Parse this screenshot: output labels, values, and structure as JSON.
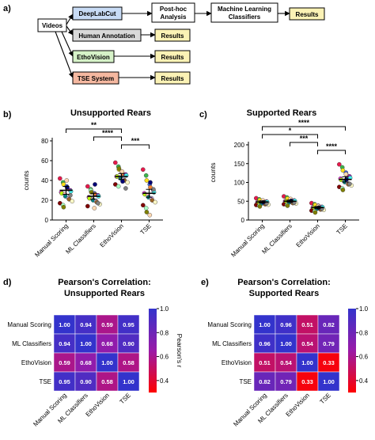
{
  "panels": {
    "a": "a)",
    "b": "b)",
    "c": "c)",
    "d": "d)",
    "e": "e)"
  },
  "flow": {
    "videos": "Videos",
    "deeplabcut": "DeepLabCut",
    "posthoc_line1": "Post-hoc",
    "posthoc_line2": "Analysis",
    "ml_line1": "Machine Learning",
    "ml_line2": "Classifiers",
    "human": "Human Annotation",
    "ethovision": "EthoVision",
    "tse": "TSE System",
    "results": "Results",
    "colors": {
      "deeplabcut": "#c8dbf5",
      "human": "#d9d9d9",
      "ethovision": "#d6f2c8",
      "tse": "#f5b8a0",
      "results": "#fbf2b5"
    }
  },
  "chart_data": [
    {
      "type": "scatter",
      "title": "Unsupported Rears",
      "ylabel": "counts",
      "categories": [
        "Manual Scoring",
        "ML Classifiers",
        "EthoVision",
        "TSE"
      ],
      "ylim": [
        0,
        80
      ],
      "yticks": [
        0,
        20,
        40,
        60,
        80
      ],
      "mean": [
        30,
        24,
        44,
        27
      ],
      "sem": [
        4,
        3,
        3,
        4
      ],
      "points": [
        [
          42,
          38,
          36,
          34,
          32,
          30,
          29,
          28,
          27,
          26,
          24,
          22,
          21,
          19,
          17,
          15,
          13,
          40,
          33,
          25
        ],
        [
          34,
          31,
          29,
          27,
          26,
          25,
          24,
          23,
          22,
          21,
          20,
          19,
          18,
          16,
          14,
          30,
          28,
          12,
          36,
          17
        ],
        [
          58,
          54,
          51,
          48,
          47,
          46,
          45,
          44,
          44,
          43,
          42,
          41,
          40,
          38,
          36,
          34,
          52,
          49,
          39,
          32
        ],
        [
          51,
          45,
          40,
          36,
          33,
          30,
          28,
          27,
          26,
          25,
          23,
          22,
          20,
          18,
          15,
          12,
          8,
          5,
          38,
          31
        ]
      ],
      "significance": [
        {
          "from": 0,
          "to": 2,
          "label": "**"
        },
        {
          "from": 1,
          "to": 2,
          "label": "****"
        },
        {
          "from": 2,
          "to": 3,
          "label": "***"
        }
      ]
    },
    {
      "type": "scatter",
      "title": "Supported Rears",
      "ylabel": "counts",
      "categories": [
        "Manual Scoring",
        "ML Classifiers",
        "EthoVision",
        "TSE"
      ],
      "ylim": [
        0,
        200
      ],
      "yticks": [
        0,
        50,
        100,
        150,
        200
      ],
      "mean": [
        48,
        50,
        33,
        108
      ],
      "sem": [
        3,
        3,
        3,
        7
      ],
      "points": [
        [
          58,
          55,
          53,
          51,
          50,
          49,
          48,
          47,
          46,
          45,
          44,
          43,
          42,
          41,
          40,
          38,
          36,
          52,
          47,
          44
        ],
        [
          63,
          60,
          57,
          55,
          53,
          52,
          51,
          50,
          49,
          48,
          47,
          46,
          45,
          44,
          42,
          40,
          38,
          56,
          51,
          46
        ],
        [
          45,
          42,
          40,
          38,
          36,
          35,
          34,
          33,
          32,
          31,
          30,
          29,
          28,
          27,
          25,
          23,
          20,
          37,
          33,
          30
        ],
        [
          148,
          140,
          132,
          126,
          120,
          116,
          112,
          110,
          107,
          104,
          101,
          98,
          95,
          92,
          88,
          84,
          80,
          122,
          108,
          96
        ]
      ],
      "significance": [
        {
          "from": 0,
          "to": 3,
          "label": "****"
        },
        {
          "from": 0,
          "to": 2,
          "label": "*"
        },
        {
          "from": 1,
          "to": 2,
          "label": "***"
        },
        {
          "from": 2,
          "to": 3,
          "label": "****"
        }
      ]
    },
    {
      "type": "heatmap",
      "title_line1": "Pearson's Correlation:",
      "title_line2": "Unsupported Rears",
      "labels": [
        "Manual Scoring",
        "ML Classifiers",
        "EthoVision",
        "TSE"
      ],
      "matrix": [
        [
          1.0,
          0.94,
          0.59,
          0.95
        ],
        [
          0.94,
          1.0,
          0.68,
          0.9
        ],
        [
          0.59,
          0.68,
          1.0,
          0.58
        ],
        [
          0.95,
          0.9,
          0.58,
          1.0
        ]
      ],
      "display": [
        [
          "1.00",
          "0.94",
          "0.59",
          "0.95"
        ],
        [
          "0.94",
          "1.00",
          "0.68",
          "0.90"
        ],
        [
          "0.59",
          "0.68",
          "1.00",
          "0.58"
        ],
        [
          "0.95",
          "0.90",
          "0.58",
          "1.00"
        ]
      ],
      "colorbar_label": "Pearson's r",
      "colorbar_ticks": [
        "1.0",
        "0.8",
        "0.6",
        "0.4"
      ],
      "colorbar_range": [
        0.3,
        1.0
      ]
    },
    {
      "type": "heatmap",
      "title_line1": "Pearson's Correlation:",
      "title_line2": "Supported Rears",
      "labels": [
        "Manual Scoring",
        "ML Classifiers",
        "EthoVision",
        "TSE"
      ],
      "matrix": [
        [
          1.0,
          0.96,
          0.51,
          0.82
        ],
        [
          0.96,
          1.0,
          0.54,
          0.79
        ],
        [
          0.51,
          0.54,
          1.0,
          0.33
        ],
        [
          0.82,
          0.79,
          0.33,
          1.0
        ]
      ],
      "display": [
        [
          "1.00",
          "0.96",
          "0.51",
          "0.82"
        ],
        [
          "0.96",
          "1.00",
          "0.54",
          "0.79"
        ],
        [
          "0.51",
          "0.54",
          "1.00",
          "0.33"
        ],
        [
          "0.82",
          "0.79",
          "0.33",
          "1.00"
        ]
      ],
      "colorbar_label": "Pearson's r",
      "colorbar_ticks": [
        "1.0",
        "0.8",
        "0.6",
        "0.4"
      ],
      "colorbar_range": [
        0.3,
        1.0
      ]
    }
  ],
  "dot_colors": [
    "#e6194b",
    "#3cb44b",
    "#ffe119",
    "#4363d8",
    "#f58231",
    "#911eb4",
    "#46f0f0",
    "#f032e6",
    "#bcf60c",
    "#fabebe",
    "#008080",
    "#e6beff",
    "#9a6324",
    "#fffac8",
    "#800000",
    "#aaffc3",
    "#808000",
    "#ffd8b1",
    "#000075",
    "#808080"
  ]
}
